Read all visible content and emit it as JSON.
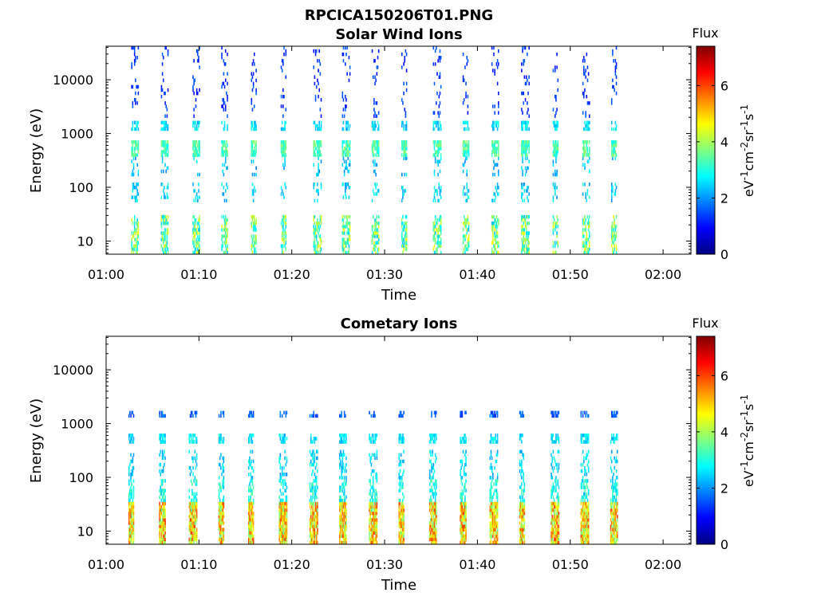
{
  "figure": {
    "title": "RPCICA150206T01.PNG"
  },
  "colors": {
    "colormap": "jet",
    "axis": "#000000",
    "background": "#ffffff"
  },
  "chart_data": [
    {
      "type": "heatmap",
      "title": "Solar Wind Ions",
      "xlabel": "Time",
      "ylabel": "Energy (eV)",
      "y_scale": "log",
      "x_ticks": [
        "01:00",
        "01:10",
        "01:20",
        "01:30",
        "01:40",
        "01:50",
        "02:00"
      ],
      "y_ticks": [
        "10",
        "100",
        "1000",
        "10000"
      ],
      "xlim_minutes": [
        60,
        123
      ],
      "ylim": [
        5.7,
        42000
      ],
      "data_end_minutes": 115,
      "colorbar": {
        "title": "Flux",
        "label": "eV-1cm-2sr-1s-1",
        "label_parts": [
          "eV",
          "-1",
          "cm",
          "-2",
          "sr",
          "-1",
          "s",
          "-1"
        ],
        "ticks": [
          "0",
          "2",
          "4",
          "6"
        ],
        "range": [
          0,
          7.4
        ]
      },
      "sweep_starts_minutes": [
        62.7,
        65.9,
        69.3,
        72.4,
        75.6,
        78.8,
        82.3,
        85.4,
        88.6,
        91.8,
        95.2,
        98.4,
        101.5,
        104.7,
        108.1,
        111.3,
        114.4
      ],
      "bands": [
        {
          "e_min": 6,
          "e_max": 32,
          "flux": 3.5,
          "spread": 1.2,
          "density": 0.55
        },
        {
          "e_min": 50,
          "e_max": 130,
          "flux": 2.5,
          "spread": 0.6,
          "density": 0.25
        },
        {
          "e_min": 150,
          "e_max": 380,
          "flux": 2.3,
          "spread": 0.5,
          "density": 0.2
        },
        {
          "e_min": 380,
          "e_max": 700,
          "flux": 3.3,
          "spread": 0.6,
          "density": 0.8
        },
        {
          "e_min": 1150,
          "e_max": 1600,
          "flux": 2.6,
          "spread": 0.5,
          "density": 0.6
        },
        {
          "e_min": 2000,
          "e_max": 42000,
          "flux": 1.3,
          "spread": 0.4,
          "density": 0.13
        }
      ]
    },
    {
      "type": "heatmap",
      "title": "Cometary Ions",
      "xlabel": "Time",
      "ylabel": "Energy (eV)",
      "y_scale": "log",
      "x_ticks": [
        "01:00",
        "01:10",
        "01:20",
        "01:30",
        "01:40",
        "01:50",
        "02:00"
      ],
      "y_ticks": [
        "10",
        "100",
        "1000",
        "10000"
      ],
      "xlim_minutes": [
        60,
        123
      ],
      "ylim": [
        5.7,
        42000
      ],
      "data_end_minutes": 115,
      "colorbar": {
        "title": "Flux",
        "label": "eV-1cm-2sr-1s-1",
        "label_parts": [
          "eV",
          "-1",
          "cm",
          "-2",
          "sr",
          "-1",
          "s",
          "-1"
        ],
        "ticks": [
          "0",
          "2",
          "4",
          "6"
        ],
        "range": [
          0,
          7.4
        ]
      },
      "sweep_starts_minutes": [
        62.4,
        65.7,
        68.9,
        72.1,
        75.3,
        78.6,
        81.9,
        85.1,
        88.3,
        91.5,
        94.8,
        98.1,
        101.3,
        104.5,
        107.9,
        111.1,
        114.3
      ],
      "bands": [
        {
          "e_min": 6,
          "e_max": 35,
          "flux": 4.8,
          "spread": 1.3,
          "density": 0.85
        },
        {
          "e_min": 35,
          "e_max": 90,
          "flux": 2.9,
          "spread": 0.6,
          "density": 0.45
        },
        {
          "e_min": 90,
          "e_max": 330,
          "flux": 2.5,
          "spread": 0.5,
          "density": 0.3
        },
        {
          "e_min": 400,
          "e_max": 620,
          "flux": 2.6,
          "spread": 0.5,
          "density": 0.65
        },
        {
          "e_min": 1300,
          "e_max": 1700,
          "flux": 1.6,
          "spread": 0.4,
          "density": 0.5
        }
      ]
    }
  ]
}
